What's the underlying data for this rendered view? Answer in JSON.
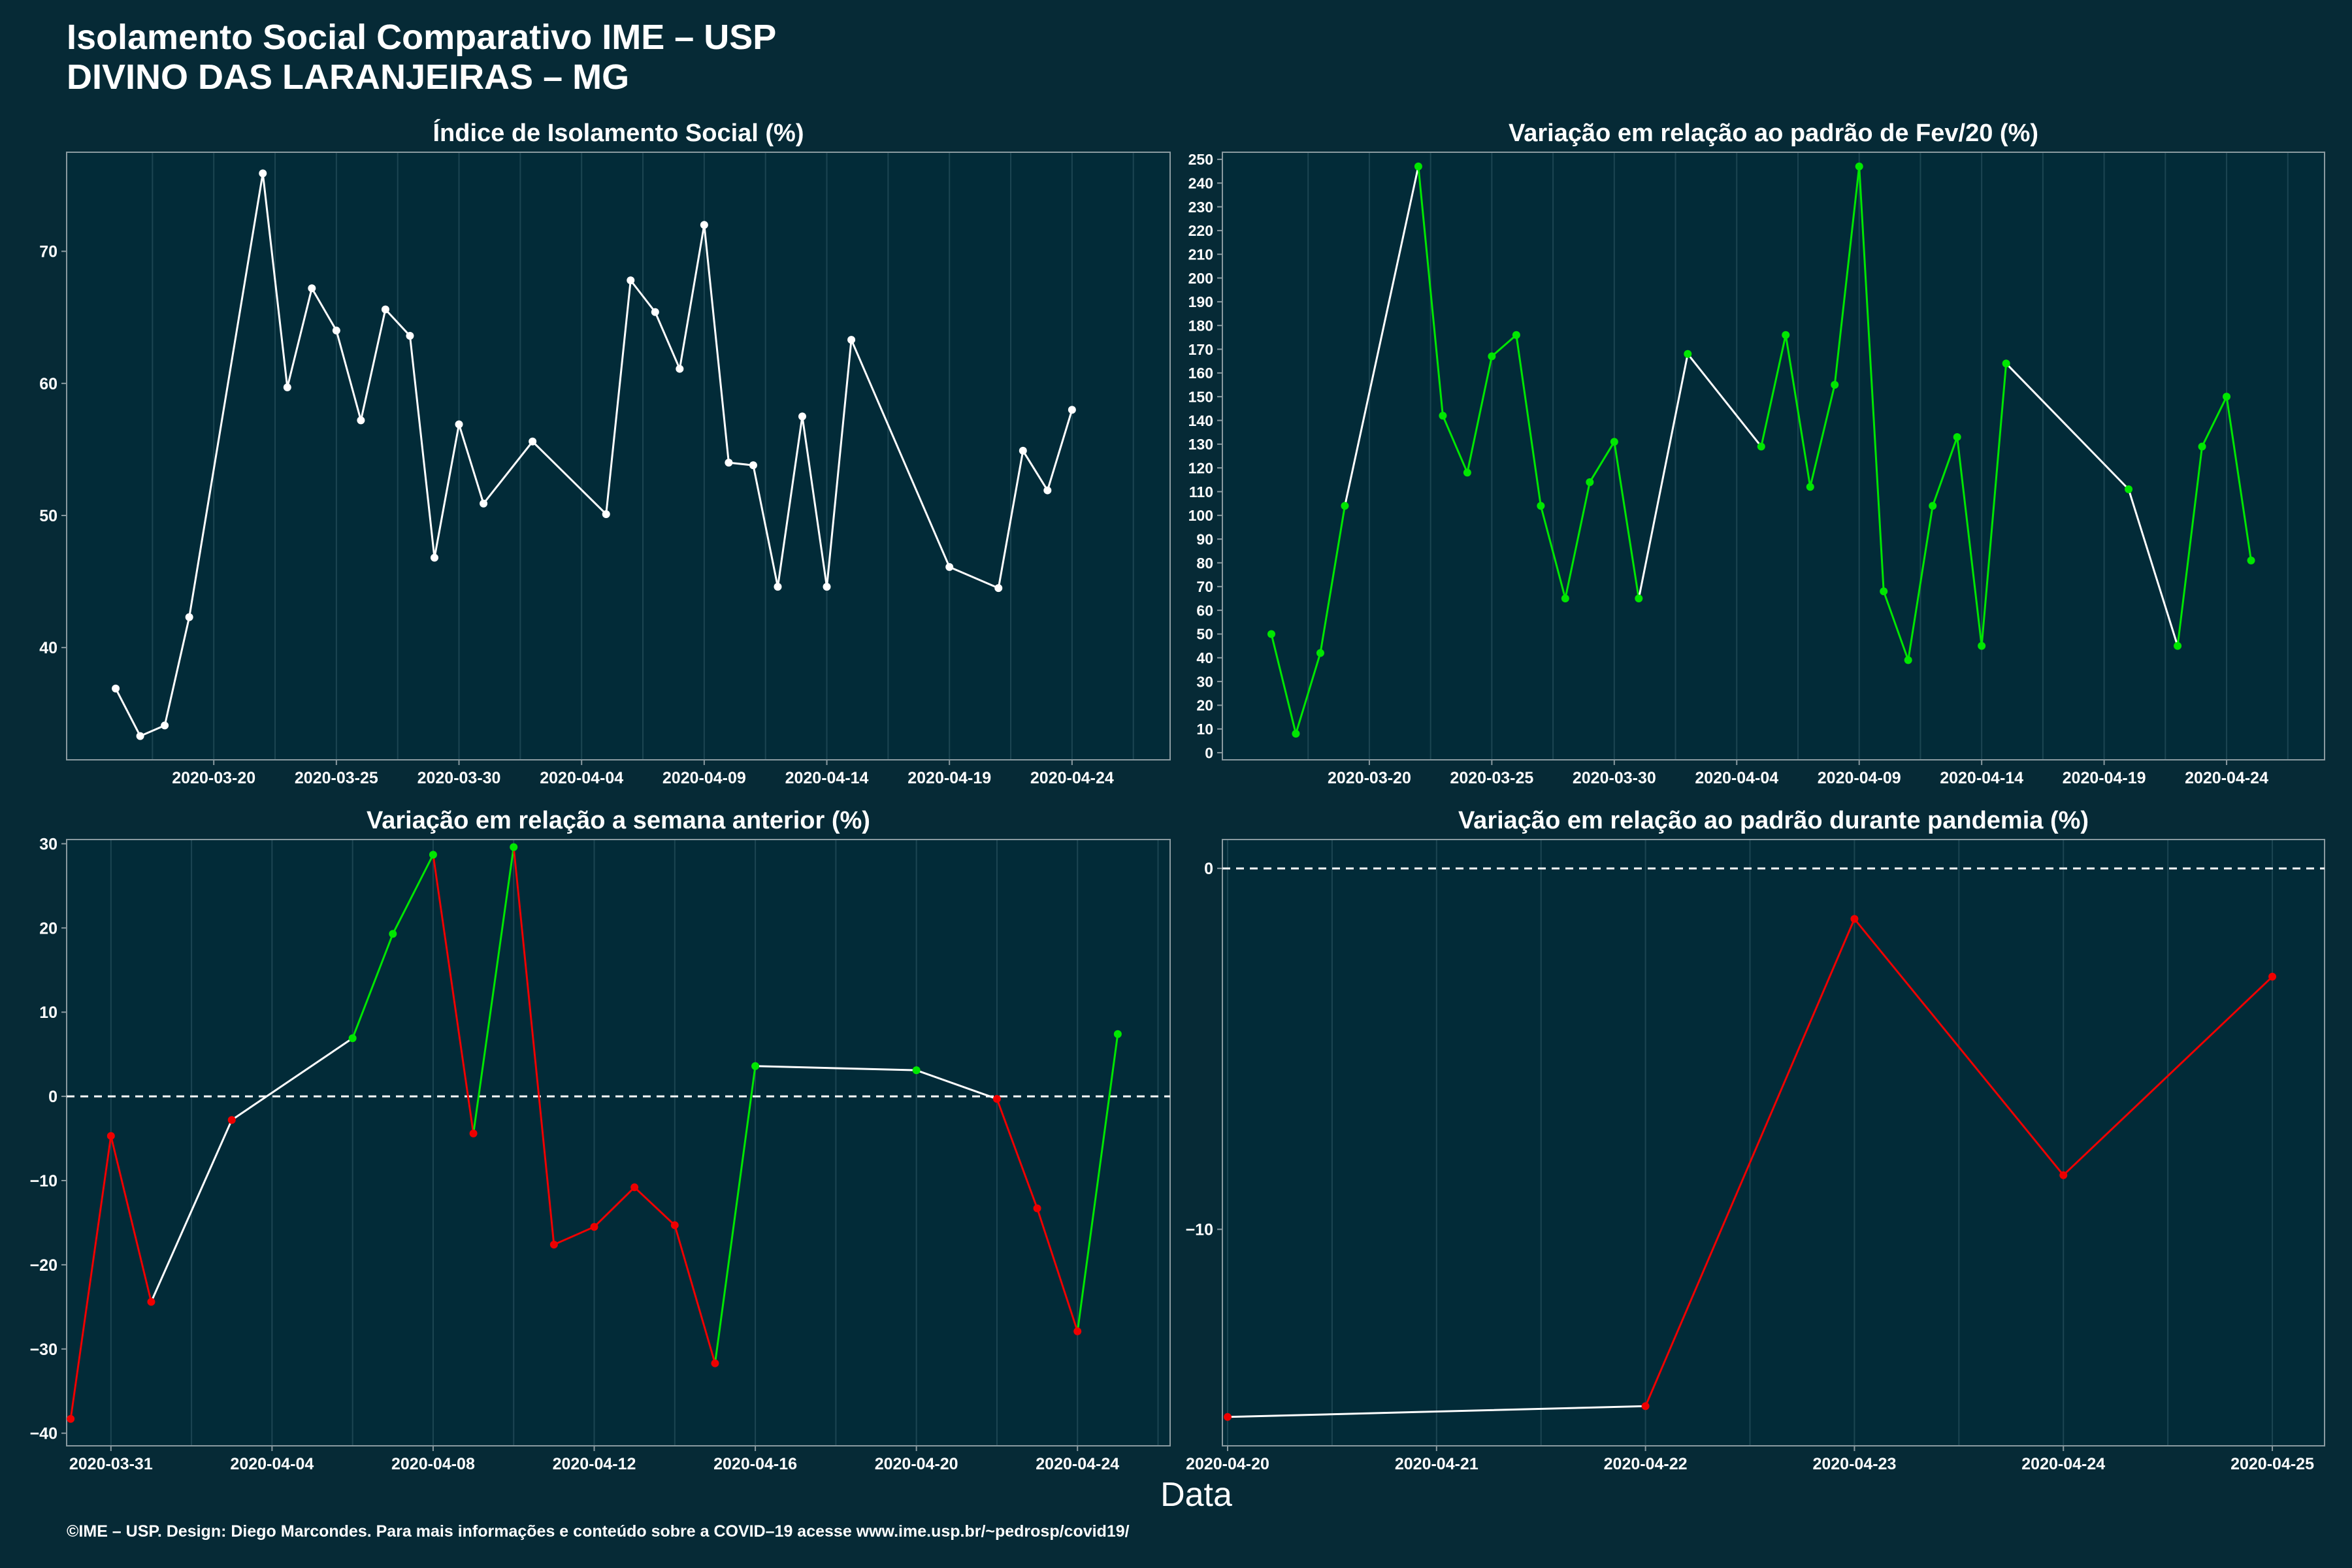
{
  "page": {
    "title_line1": "Isolamento Social Comparativo IME – USP",
    "title_line2": "DIVINO DAS LARANJEIRAS – MG",
    "xlabel": "Data",
    "footer": "©IME – USP. Design: Diego Marcondes. Para mais informações e conteúdo sobre a COVID–19 acesse www.ime.usp.br/~pedrosp/covid19/"
  },
  "colors": {
    "background": "#062a36",
    "panel": "#022b38",
    "frame": "#8a9aa0",
    "grid": "#1c4552",
    "neutral": "#ffffff",
    "up": "#00e600",
    "down": "#ee0000"
  },
  "chart_data": [
    {
      "type": "line",
      "title": "Índice de Isolamento Social (%)",
      "x_type": "date",
      "xlim": [
        "2020-03-14",
        "2020-04-28"
      ],
      "x_ticks": [
        "2020-03-20",
        "2020-03-25",
        "2020-03-30",
        "2020-04-04",
        "2020-04-09",
        "2020-04-14",
        "2020-04-19",
        "2020-04-24"
      ],
      "ylim": [
        31.5,
        77.5
      ],
      "y_ticks": [
        40,
        50,
        60,
        70
      ],
      "grid": true,
      "points": [
        {
          "x": "2020-03-16",
          "y": 36.9,
          "c": "neutral"
        },
        {
          "x": "2020-03-17",
          "y": 33.3,
          "c": "neutral"
        },
        {
          "x": "2020-03-18",
          "y": 34.1,
          "c": "neutral"
        },
        {
          "x": "2020-03-19",
          "y": 42.3,
          "c": "neutral"
        },
        {
          "x": "2020-03-22",
          "y": 75.9,
          "c": "neutral"
        },
        {
          "x": "2020-03-23",
          "y": 59.7,
          "c": "neutral"
        },
        {
          "x": "2020-03-24",
          "y": 67.2,
          "c": "neutral"
        },
        {
          "x": "2020-03-25",
          "y": 64.0,
          "c": "neutral"
        },
        {
          "x": "2020-03-26",
          "y": 57.2,
          "c": "neutral"
        },
        {
          "x": "2020-03-27",
          "y": 65.6,
          "c": "neutral"
        },
        {
          "x": "2020-03-28",
          "y": 63.6,
          "c": "neutral"
        },
        {
          "x": "2020-03-29",
          "y": 46.8,
          "c": "neutral"
        },
        {
          "x": "2020-03-30",
          "y": 56.9,
          "c": "neutral"
        },
        {
          "x": "2020-03-31",
          "y": 50.9,
          "c": "neutral"
        },
        {
          "x": "2020-04-02",
          "y": 55.6,
          "c": "neutral"
        },
        {
          "x": "2020-04-05",
          "y": 50.1,
          "c": "neutral"
        },
        {
          "x": "2020-04-06",
          "y": 67.8,
          "c": "neutral"
        },
        {
          "x": "2020-04-07",
          "y": 65.4,
          "c": "neutral"
        },
        {
          "x": "2020-04-08",
          "y": 61.1,
          "c": "neutral"
        },
        {
          "x": "2020-04-09",
          "y": 72.0,
          "c": "neutral"
        },
        {
          "x": "2020-04-10",
          "y": 54.0,
          "c": "neutral"
        },
        {
          "x": "2020-04-11",
          "y": 53.8,
          "c": "neutral"
        },
        {
          "x": "2020-04-12",
          "y": 44.6,
          "c": "neutral"
        },
        {
          "x": "2020-04-13",
          "y": 57.5,
          "c": "neutral"
        },
        {
          "x": "2020-04-14",
          "y": 44.6,
          "c": "neutral"
        },
        {
          "x": "2020-04-15",
          "y": 63.3,
          "c": "neutral"
        },
        {
          "x": "2020-04-19",
          "y": 46.1,
          "c": "neutral"
        },
        {
          "x": "2020-04-21",
          "y": 44.5,
          "c": "neutral"
        },
        {
          "x": "2020-04-22",
          "y": 54.9,
          "c": "neutral"
        },
        {
          "x": "2020-04-23",
          "y": 51.9,
          "c": "neutral"
        },
        {
          "x": "2020-04-24",
          "y": 58.0,
          "c": "neutral"
        }
      ]
    },
    {
      "type": "line",
      "title": "Variação em relação ao padrão de Fev/20 (%)",
      "x_type": "date",
      "xlim": [
        "2020-03-14",
        "2020-04-28"
      ],
      "x_ticks": [
        "2020-03-20",
        "2020-03-25",
        "2020-03-30",
        "2020-04-04",
        "2020-04-09",
        "2020-04-14",
        "2020-04-19",
        "2020-04-24"
      ],
      "ylim": [
        -3,
        253
      ],
      "y_ticks": [
        0,
        10,
        20,
        30,
        40,
        50,
        60,
        70,
        80,
        90,
        100,
        110,
        120,
        130,
        140,
        150,
        160,
        170,
        180,
        190,
        200,
        210,
        220,
        230,
        240,
        250
      ],
      "grid": true,
      "points": [
        {
          "x": "2020-03-16",
          "y": 50,
          "c": "up"
        },
        {
          "x": "2020-03-17",
          "y": 8,
          "c": "up"
        },
        {
          "x": "2020-03-18",
          "y": 42,
          "c": "up"
        },
        {
          "x": "2020-03-19",
          "y": 104,
          "c": "up"
        },
        {
          "x": "2020-03-22",
          "y": 247,
          "c": "up"
        },
        {
          "x": "2020-03-23",
          "y": 142,
          "c": "up"
        },
        {
          "x": "2020-03-24",
          "y": 118,
          "c": "up"
        },
        {
          "x": "2020-03-25",
          "y": 167,
          "c": "up"
        },
        {
          "x": "2020-03-26",
          "y": 176,
          "c": "up"
        },
        {
          "x": "2020-03-27",
          "y": 104,
          "c": "up"
        },
        {
          "x": "2020-03-28",
          "y": 65,
          "c": "up"
        },
        {
          "x": "2020-03-29",
          "y": 114,
          "c": "up"
        },
        {
          "x": "2020-03-30",
          "y": 131,
          "c": "up"
        },
        {
          "x": "2020-03-31",
          "y": 65,
          "c": "up"
        },
        {
          "x": "2020-04-02",
          "y": 168,
          "c": "up"
        },
        {
          "x": "2020-04-05",
          "y": 129,
          "c": "up"
        },
        {
          "x": "2020-04-06",
          "y": 176,
          "c": "up"
        },
        {
          "x": "2020-04-07",
          "y": 112,
          "c": "up"
        },
        {
          "x": "2020-04-08",
          "y": 155,
          "c": "up"
        },
        {
          "x": "2020-04-09",
          "y": 247,
          "c": "up"
        },
        {
          "x": "2020-04-10",
          "y": 68,
          "c": "up"
        },
        {
          "x": "2020-04-11",
          "y": 39,
          "c": "up"
        },
        {
          "x": "2020-04-12",
          "y": 104,
          "c": "up"
        },
        {
          "x": "2020-04-13",
          "y": 133,
          "c": "up"
        },
        {
          "x": "2020-04-14",
          "y": 45,
          "c": "up"
        },
        {
          "x": "2020-04-15",
          "y": 164,
          "c": "up"
        },
        {
          "x": "2020-04-20",
          "y": 111,
          "c": "up"
        },
        {
          "x": "2020-04-22",
          "y": 45,
          "c": "up"
        },
        {
          "x": "2020-04-23",
          "y": 129,
          "c": "up"
        },
        {
          "x": "2020-04-24",
          "y": 150,
          "c": "up"
        },
        {
          "x": "2020-04-25",
          "y": 81,
          "c": "up"
        }
      ]
    },
    {
      "type": "line",
      "title": "Variação em relação a semana anterior (%)",
      "x_type": "date",
      "xlim": [
        "2020-03-29.9",
        "2020-04-26.3"
      ],
      "x_ticks": [
        "2020-03-31",
        "2020-04-04",
        "2020-04-08",
        "2020-04-12",
        "2020-04-16",
        "2020-04-20",
        "2020-04-24"
      ],
      "ylim": [
        -41.5,
        30.5
      ],
      "y_ticks": [
        -40,
        -30,
        -20,
        -10,
        0,
        10,
        20,
        30
      ],
      "grid": true,
      "reference_line": 0,
      "points": [
        {
          "x": "2020-03-30",
          "y": -38.3,
          "c": "down"
        },
        {
          "x": "2020-03-31",
          "y": -4.7,
          "c": "down"
        },
        {
          "x": "2020-04-01",
          "y": -24.4,
          "c": "down"
        },
        {
          "x": "2020-04-03",
          "y": -2.8,
          "c": "down"
        },
        {
          "x": "2020-04-06",
          "y": 6.9,
          "c": "up"
        },
        {
          "x": "2020-04-07",
          "y": 19.3,
          "c": "up"
        },
        {
          "x": "2020-04-08",
          "y": 28.7,
          "c": "up"
        },
        {
          "x": "2020-04-09",
          "y": -4.4,
          "c": "down"
        },
        {
          "x": "2020-04-10",
          "y": 29.6,
          "c": "up"
        },
        {
          "x": "2020-04-11",
          "y": -17.6,
          "c": "down"
        },
        {
          "x": "2020-04-12",
          "y": -15.5,
          "c": "down"
        },
        {
          "x": "2020-04-13",
          "y": -10.8,
          "c": "down"
        },
        {
          "x": "2020-04-14",
          "y": -15.3,
          "c": "down"
        },
        {
          "x": "2020-04-15",
          "y": -31.7,
          "c": "down"
        },
        {
          "x": "2020-04-16",
          "y": 3.6,
          "c": "up"
        },
        {
          "x": "2020-04-20",
          "y": 3.1,
          "c": "up"
        },
        {
          "x": "2020-04-22",
          "y": -0.3,
          "c": "down"
        },
        {
          "x": "2020-04-23",
          "y": -13.3,
          "c": "down"
        },
        {
          "x": "2020-04-24",
          "y": -27.9,
          "c": "down"
        },
        {
          "x": "2020-04-25",
          "y": 7.4,
          "c": "up"
        }
      ]
    },
    {
      "type": "line",
      "title": "Variação em relação ao padrão durante pandemia (%)",
      "x_type": "date",
      "xlim": [
        "2020-04-19.975",
        "2020-04-25.25"
      ],
      "x_ticks": [
        "2020-04-20",
        "2020-04-21",
        "2020-04-22",
        "2020-04-23",
        "2020-04-24",
        "2020-04-25"
      ],
      "ylim": [
        -16.0,
        0.8
      ],
      "y_ticks": [
        -10,
        0
      ],
      "grid": true,
      "reference_line": 0,
      "points": [
        {
          "x": "2020-04-20",
          "y": -15.2,
          "c": "down"
        },
        {
          "x": "2020-04-22",
          "y": -14.9,
          "c": "down"
        },
        {
          "x": "2020-04-23",
          "y": -1.4,
          "c": "down"
        },
        {
          "x": "2020-04-24",
          "y": -8.5,
          "c": "down"
        },
        {
          "x": "2020-04-25",
          "y": -3.0,
          "c": "down"
        }
      ]
    }
  ]
}
